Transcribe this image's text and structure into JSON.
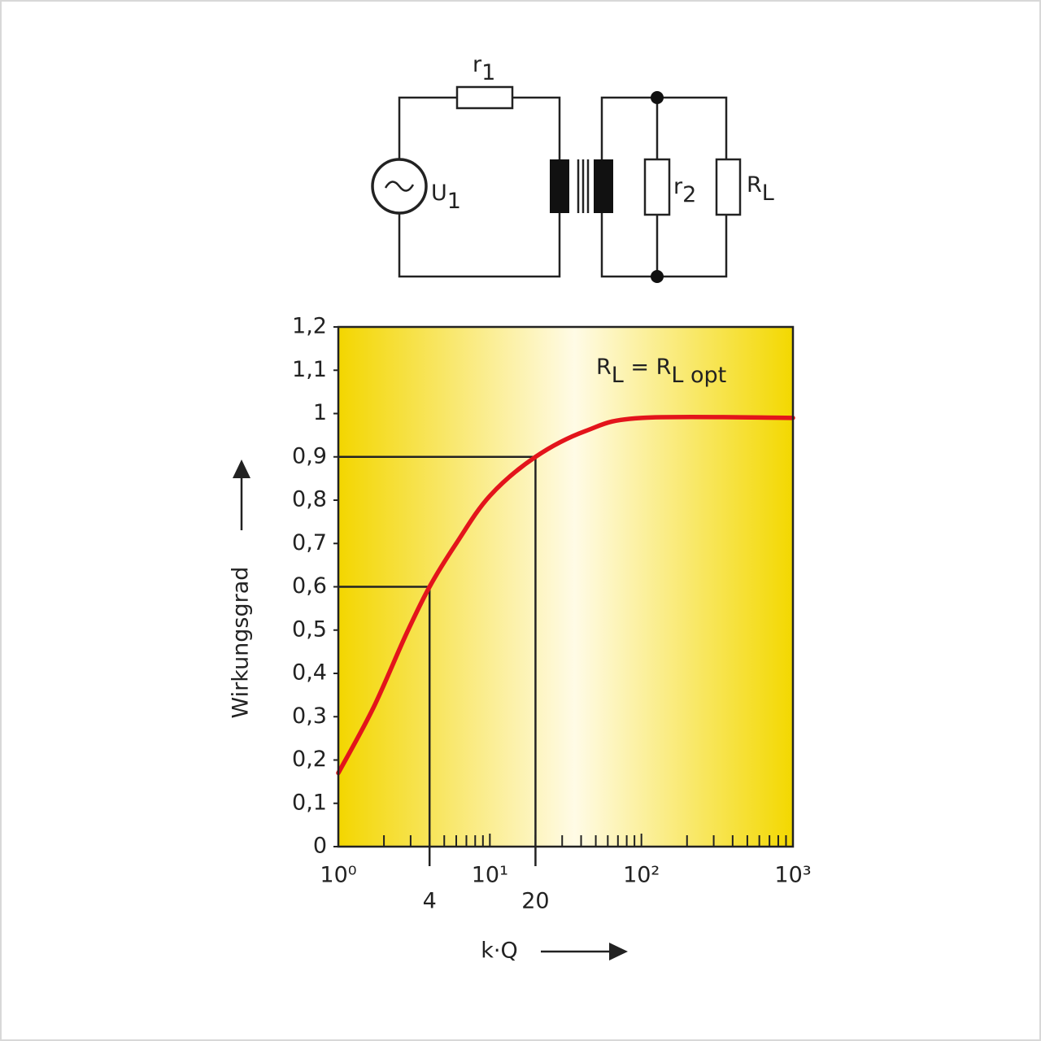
{
  "circuit": {
    "labels": [
      {
        "main": "r",
        "sub": "1"
      },
      {
        "main": "U",
        "sub": "1"
      },
      {
        "main": "r",
        "sub": "2"
      },
      {
        "main": "R",
        "sub": "L"
      }
    ]
  },
  "chart_data": {
    "type": "line",
    "log_x": true,
    "x_label": "k·Q",
    "y_label": "Wirkungsgrad",
    "annotation": [
      {
        "text": "R"
      },
      {
        "text": "L",
        "sub": true
      },
      {
        "text": " = R"
      },
      {
        "text": "L opt",
        "sub": true
      }
    ],
    "x": [
      1,
      1.7,
      2.8,
      4,
      6,
      10,
      20,
      43,
      100,
      1000
    ],
    "series": [
      {
        "color": "#e3141b",
        "values": [
          0.17,
          0.32,
          0.49,
          0.6,
          0.7,
          0.81,
          0.9,
          0.96,
          0.99,
          0.99
        ]
      }
    ],
    "xlim": [
      1,
      1000
    ],
    "xticks": [
      {
        "value": 1,
        "label": "10⁰"
      },
      {
        "value": 10,
        "label": "10¹"
      },
      {
        "value": 100,
        "label": "10²"
      },
      {
        "value": 1000,
        "label": "10³"
      }
    ],
    "xminor": [
      2,
      3,
      4,
      5,
      6,
      7,
      8,
      9,
      20,
      30,
      40,
      50,
      60,
      70,
      80,
      90,
      200,
      300,
      400,
      500,
      600,
      700,
      800,
      900
    ],
    "reference_points": [
      {
        "x": 4,
        "y": 0.6
      },
      {
        "x": 20,
        "y": 0.9
      }
    ],
    "ylim": [
      0,
      1.2
    ],
    "yticks": [
      0,
      {
        "value": 0.1,
        "label": "0,1"
      },
      {
        "value": 0.2,
        "label": "0,2"
      },
      {
        "value": 0.3,
        "label": "0,3"
      },
      {
        "value": 0.4,
        "label": "0,4"
      },
      {
        "value": 0.5,
        "label": "0,5"
      },
      {
        "value": 0.6,
        "label": "0,6"
      },
      {
        "value": 0.7,
        "label": "0,7"
      },
      {
        "value": 0.8,
        "label": "0,8"
      },
      {
        "value": 0.9,
        "label": "0,9"
      },
      1,
      {
        "value": 1.1,
        "label": "1,1"
      },
      {
        "value": 1.2,
        "label": "1,2"
      }
    ]
  }
}
